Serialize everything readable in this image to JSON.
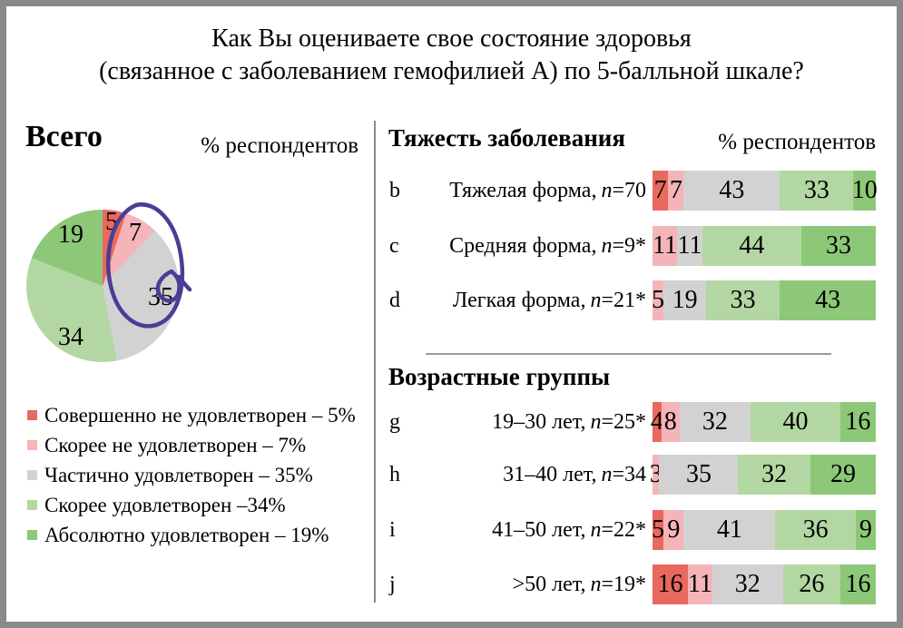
{
  "title": {
    "line1": "Как Вы оцениваете свое состояние здоровья",
    "line2": "(связанное с заболеванием гемофилией А) по 5-балльной шкале?"
  },
  "left": {
    "heading": "Всего",
    "axis_label": "% респондентов",
    "legend": [
      {
        "label": "Совершенно не удовлетворен – 5%",
        "color": "#e9695e"
      },
      {
        "label": "Скорее не удовлетворен – 7%",
        "color": "#f4b4b8"
      },
      {
        "label": "Частично удовлетворен – 35%",
        "color": "#d2d2d2"
      },
      {
        "label": "Скорее удовлетворен –34%",
        "color": "#b3d7a2"
      },
      {
        "label": "Абсолютно удовлетворен – 19%",
        "color": "#8cc878"
      }
    ]
  },
  "right": {
    "severity": {
      "heading": "Тяжесть заболевания",
      "axis_label": "% респондентов",
      "rows": [
        {
          "letter": "b",
          "label": "Тяжелая форма,",
          "n": "n=70"
        },
        {
          "letter": "c",
          "label": "Средняя форма,",
          "n": "n=9*"
        },
        {
          "letter": "d",
          "label": "Легкая форма,",
          "n": "n=21*"
        }
      ]
    },
    "age": {
      "heading": "Возрастные группы",
      "rows": [
        {
          "letter": "g",
          "label": "19–30 лет,",
          "n": "n=25*"
        },
        {
          "letter": "h",
          "label": "31–40 лет,",
          "n": "n=34"
        },
        {
          "letter": "i",
          "label": "41–50 лет,",
          "n": "n=22*"
        },
        {
          "letter": "j",
          "label": ">50 лет,",
          "n": "n=19*"
        }
      ]
    }
  },
  "annotation": {
    "color": "#4c3c96",
    "description": "hand-drawn purple ellipse circling the 5%, 7% and 35% pie segments"
  },
  "chart_data": [
    {
      "type": "pie",
      "title": "Всего",
      "unit": "% респондентов",
      "labels": [
        "Совершенно не удовлетворен",
        "Скорее не удовлетворен",
        "Частично удовлетворен",
        "Скорее удовлетворен",
        "Абсолютно удовлетворен"
      ],
      "values": [
        5,
        7,
        35,
        34,
        19
      ],
      "colors": [
        "#e9695e",
        "#f4b4b8",
        "#d2d2d2",
        "#b3d7a2",
        "#8cc878"
      ],
      "start_angle_deg": 0,
      "direction": "clockwise",
      "annotation": "purple hand-drawn ellipse around the 5, 7 and 35 segments"
    },
    {
      "type": "bar",
      "subtype": "stacked-horizontal-percent",
      "title": "Тяжесть заболевания",
      "unit": "% респондентов",
      "categories": [
        "Совершенно не удовлетворен",
        "Скорее не удовлетворен",
        "Частично удовлетворен",
        "Скорее удовлетворен",
        "Абсолютно удовлетворен"
      ],
      "colors": [
        "#e9695e",
        "#f4b4b8",
        "#d2d2d2",
        "#b3d7a2",
        "#8cc878"
      ],
      "xlim": [
        0,
        100
      ],
      "rows": [
        {
          "letter": "b",
          "label": "Тяжелая форма, n=70",
          "values": [
            7,
            7,
            43,
            33,
            10
          ]
        },
        {
          "letter": "c",
          "label": "Средняя форма, n=9*",
          "values": [
            0,
            11,
            11,
            44,
            33
          ]
        },
        {
          "letter": "d",
          "label": "Легкая форма, n=21*",
          "values": [
            0,
            5,
            19,
            33,
            43
          ]
        }
      ]
    },
    {
      "type": "bar",
      "subtype": "stacked-horizontal-percent",
      "title": "Возрастные группы",
      "unit": "% респондентов",
      "categories": [
        "Совершенно не удовлетворен",
        "Скорее не удовлетворен",
        "Частично удовлетворен",
        "Скорее удовлетворен",
        "Абсолютно удовлетворен"
      ],
      "colors": [
        "#e9695e",
        "#f4b4b8",
        "#d2d2d2",
        "#b3d7a2",
        "#8cc878"
      ],
      "xlim": [
        0,
        100
      ],
      "rows": [
        {
          "letter": "g",
          "label": "19–30 лет, n=25*",
          "values": [
            4,
            8,
            32,
            40,
            16
          ]
        },
        {
          "letter": "h",
          "label": "31–40 лет, n=34",
          "values": [
            0,
            3,
            35,
            32,
            29
          ]
        },
        {
          "letter": "i",
          "label": "41–50 лет, n=22*",
          "values": [
            5,
            9,
            41,
            36,
            9
          ]
        },
        {
          "letter": "j",
          "label": ">50 лет, n=19*",
          "values": [
            16,
            11,
            32,
            26,
            16
          ]
        }
      ]
    }
  ]
}
